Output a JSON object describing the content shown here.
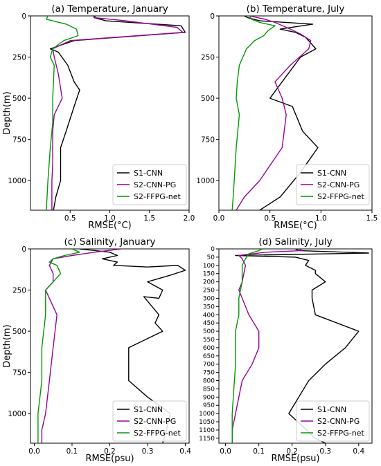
{
  "figure": {
    "background": "#ffffff",
    "series_colors": {
      "S1-CNN": "#000000",
      "S2-CNN-PG": "#990099",
      "S2-FFPG-net": "#009900"
    }
  },
  "chart_data": [
    {
      "type": "line",
      "orientation": "vertical-profile",
      "title": "(a) Temperature, January",
      "xlabel": "RMSE(°C)",
      "ylabel": "Depth(m)",
      "xlim": [
        0.0,
        2.0
      ],
      "ylim": [
        1180,
        0
      ],
      "xticks": [
        0.5,
        1.0,
        1.5,
        2.0
      ],
      "xtick_labels": [
        "0.5",
        "1.0",
        "1.5",
        "2.0"
      ],
      "yticks": [
        0,
        250,
        500,
        750,
        1000
      ],
      "ytick_labels": [
        "0",
        "250",
        "500",
        "750",
        "1000"
      ],
      "legend": {
        "placement": "bottom-right",
        "entries": [
          "S1-CNN",
          "S2-CNN-PG",
          "S2-FFPG-net"
        ]
      },
      "series": [
        {
          "name": "S1-CNN",
          "color": "#000000",
          "x": [
            0.82,
            0.8,
            0.95,
            1.9,
            1.95,
            0.55,
            0.25,
            0.35,
            0.47,
            0.55,
            0.62,
            0.55,
            0.45,
            0.38,
            0.38,
            0.38,
            0.32,
            0.29
          ],
          "y": [
            0,
            10,
            30,
            60,
            100,
            150,
            200,
            220,
            300,
            400,
            450,
            550,
            700,
            800,
            900,
            1000,
            1100,
            1180
          ]
        },
        {
          "name": "S2-CNN-PG",
          "color": "#990099",
          "x": [
            0.8,
            0.8,
            1.2,
            1.85,
            1.92,
            0.5,
            0.28,
            0.3,
            0.35,
            0.4,
            0.3,
            0.28,
            0.28,
            0.27,
            0.27
          ],
          "y": [
            0,
            10,
            30,
            70,
            100,
            150,
            200,
            250,
            350,
            500,
            600,
            700,
            900,
            1000,
            1180
          ]
        },
        {
          "name": "S2-FFPG-net",
          "color": "#009900",
          "x": [
            0.22,
            0.2,
            0.45,
            0.58,
            0.6,
            0.42,
            0.28,
            0.25,
            0.3,
            0.28,
            0.28,
            0.25,
            0.22,
            0.2
          ],
          "y": [
            0,
            20,
            50,
            80,
            120,
            150,
            200,
            250,
            300,
            500,
            650,
            800,
            1000,
            1180
          ]
        }
      ]
    },
    {
      "type": "line",
      "orientation": "vertical-profile",
      "title": "(b) Temperature, July",
      "xlabel": "RMSE(°C)",
      "ylabel": "",
      "xlim": [
        0.0,
        1.5
      ],
      "ylim": [
        1180,
        0
      ],
      "xticks": [
        0.0,
        0.5,
        1.0,
        1.5
      ],
      "xtick_labels": [
        "0.0",
        "0.5",
        "1.0",
        "1.5"
      ],
      "yticks": [
        0,
        250,
        500,
        750,
        1000
      ],
      "ytick_labels": [
        "0",
        "250",
        "500",
        "750",
        "1000"
      ],
      "legend": {
        "placement": "bottom-right",
        "entries": [
          "S1-CNN",
          "S2-CNN-PG",
          "S2-FFPG-net"
        ]
      },
      "series": [
        {
          "name": "S1-CNN",
          "color": "#000000",
          "x": [
            0.25,
            0.28,
            0.4,
            0.92,
            0.6,
            0.75,
            0.85,
            0.95,
            0.8,
            0.68,
            0.5,
            0.72,
            0.82,
            0.97,
            0.8,
            0.6,
            0.4
          ],
          "y": [
            0,
            10,
            30,
            50,
            80,
            100,
            130,
            200,
            250,
            350,
            500,
            550,
            700,
            800,
            950,
            1100,
            1180
          ]
        },
        {
          "name": "S2-CNN-PG",
          "color": "#990099",
          "x": [
            0.3,
            0.45,
            0.55,
            0.7,
            0.8,
            0.9,
            0.88,
            0.7,
            0.55,
            0.62,
            0.66,
            0.62,
            0.4,
            0.25,
            0.17
          ],
          "y": [
            0,
            20,
            40,
            80,
            110,
            150,
            200,
            300,
            400,
            500,
            600,
            800,
            1000,
            1100,
            1180
          ]
        },
        {
          "name": "S2-FFPG-net",
          "color": "#009900",
          "x": [
            0.3,
            0.32,
            0.4,
            0.55,
            0.48,
            0.44,
            0.35,
            0.27,
            0.2,
            0.18,
            0.17,
            0.2,
            0.17,
            0.15,
            0.14,
            0.13
          ],
          "y": [
            0,
            20,
            40,
            60,
            90,
            120,
            150,
            200,
            300,
            400,
            500,
            600,
            800,
            1000,
            1100,
            1180
          ]
        }
      ]
    },
    {
      "type": "line",
      "orientation": "vertical-profile",
      "title": "(c) Salinity, January",
      "xlabel": "RMSE(psu)",
      "ylabel": "Depth(m)",
      "xlim": [
        -0.01,
        0.41
      ],
      "ylim": [
        1180,
        0
      ],
      "xticks": [
        0.0,
        0.1,
        0.2,
        0.3,
        0.4
      ],
      "xtick_labels": [
        "0.0",
        "0.1",
        "0.2",
        "0.3",
        "0.4"
      ],
      "yticks": [
        0,
        250,
        500,
        750,
        1000
      ],
      "ytick_labels": [
        "0",
        "250",
        "500",
        "750",
        "1000"
      ],
      "legend": {
        "placement": "bottom-right",
        "entries": [
          "S1-CNN",
          "S2-CNN-PG",
          "S2-FFPG-net"
        ]
      },
      "series": [
        {
          "name": "S1-CNN",
          "color": "#000000",
          "x": [
            0.12,
            0.2,
            0.22,
            0.18,
            0.22,
            0.21,
            0.3,
            0.38,
            0.4,
            0.36,
            0.3,
            0.34,
            0.33,
            0.29,
            0.33,
            0.32,
            0.34,
            0.25,
            0.25,
            0.25,
            0.3,
            0.36,
            0.35,
            0.34
          ],
          "y": [
            0,
            20,
            40,
            60,
            80,
            100,
            110,
            100,
            130,
            160,
            200,
            250,
            300,
            290,
            400,
            450,
            500,
            600,
            700,
            800,
            900,
            1000,
            1100,
            1180
          ]
        },
        {
          "name": "S2-CNN-PG",
          "color": "#990099",
          "x": [
            0.23,
            0.16,
            0.1,
            0.05,
            0.04,
            0.05,
            0.05,
            0.03,
            0.04,
            0.06,
            0.05,
            0.04,
            0.03,
            0.02,
            0.02
          ],
          "y": [
            0,
            20,
            40,
            60,
            100,
            150,
            200,
            250,
            300,
            400,
            600,
            800,
            1000,
            1100,
            1180
          ]
        },
        {
          "name": "S2-FFPG-net",
          "color": "#009900",
          "x": [
            0.1,
            0.12,
            0.08,
            0.05,
            0.04,
            0.06,
            0.07,
            0.05,
            0.03,
            0.03,
            0.03,
            0.02,
            0.02,
            0.01,
            0.01
          ],
          "y": [
            0,
            20,
            40,
            60,
            80,
            100,
            150,
            200,
            250,
            300,
            400,
            600,
            800,
            1000,
            1180
          ]
        }
      ]
    },
    {
      "type": "line",
      "orientation": "vertical-profile",
      "title": "(d) Salinity, July",
      "xlabel": "RMSE(psu)",
      "ylabel": "",
      "xlim": [
        -0.02,
        0.44
      ],
      "ylim": [
        1180,
        0
      ],
      "xticks": [
        0.0,
        0.1,
        0.2,
        0.3,
        0.4
      ],
      "xtick_labels": [
        "0.0",
        "0.1",
        "0.2",
        "0.3",
        "0.4"
      ],
      "yticks": [
        0,
        50,
        100,
        150,
        200,
        250,
        300,
        350,
        400,
        450,
        500,
        550,
        600,
        650,
        700,
        750,
        800,
        850,
        900,
        950,
        1000,
        1050,
        1100,
        1150
      ],
      "ytick_labels": [
        "0",
        "50",
        "100",
        "150",
        "200",
        "250",
        "300",
        "350",
        "400",
        "450",
        "500",
        "550",
        "600",
        "650",
        "700",
        "750",
        "800",
        "850",
        "900",
        "950",
        "1000",
        "1050",
        "1100",
        "1150"
      ],
      "legend": {
        "placement": "bottom-right",
        "entries": [
          "S1-CNN",
          "S2-CNN-PG",
          "S2-FFPG-net"
        ]
      },
      "series": [
        {
          "name": "S1-CNN",
          "color": "#000000",
          "x": [
            0.21,
            0.22,
            0.43,
            0.03,
            0.21,
            0.25,
            0.24,
            0.27,
            0.27,
            0.3,
            0.26,
            0.26,
            0.27,
            0.4,
            0.36,
            0.3,
            0.25,
            0.22,
            0.19,
            0.27,
            0.3
          ],
          "y": [
            0,
            10,
            25,
            40,
            50,
            70,
            100,
            130,
            150,
            200,
            250,
            300,
            400,
            500,
            600,
            700,
            800,
            900,
            1000,
            1150,
            1180
          ]
        },
        {
          "name": "S2-CNN-PG",
          "color": "#990099",
          "x": [
            0.22,
            0.23,
            0.12,
            0.04,
            0.05,
            0.06,
            0.05,
            0.04,
            0.05,
            0.07,
            0.1,
            0.1,
            0.08,
            0.05,
            0.04,
            0.03,
            0.02,
            0.02
          ],
          "y": [
            0,
            10,
            20,
            40,
            60,
            100,
            200,
            250,
            300,
            400,
            500,
            600,
            700,
            800,
            900,
            1000,
            1100,
            1180
          ]
        },
        {
          "name": "S2-FFPG-net",
          "color": "#009900",
          "x": [
            0.11,
            0.1,
            0.07,
            0.06,
            0.05,
            0.05,
            0.04,
            0.04,
            0.03,
            0.03,
            0.02,
            0.02
          ],
          "y": [
            0,
            10,
            30,
            60,
            100,
            200,
            300,
            400,
            500,
            700,
            1000,
            1180
          ]
        }
      ]
    }
  ]
}
